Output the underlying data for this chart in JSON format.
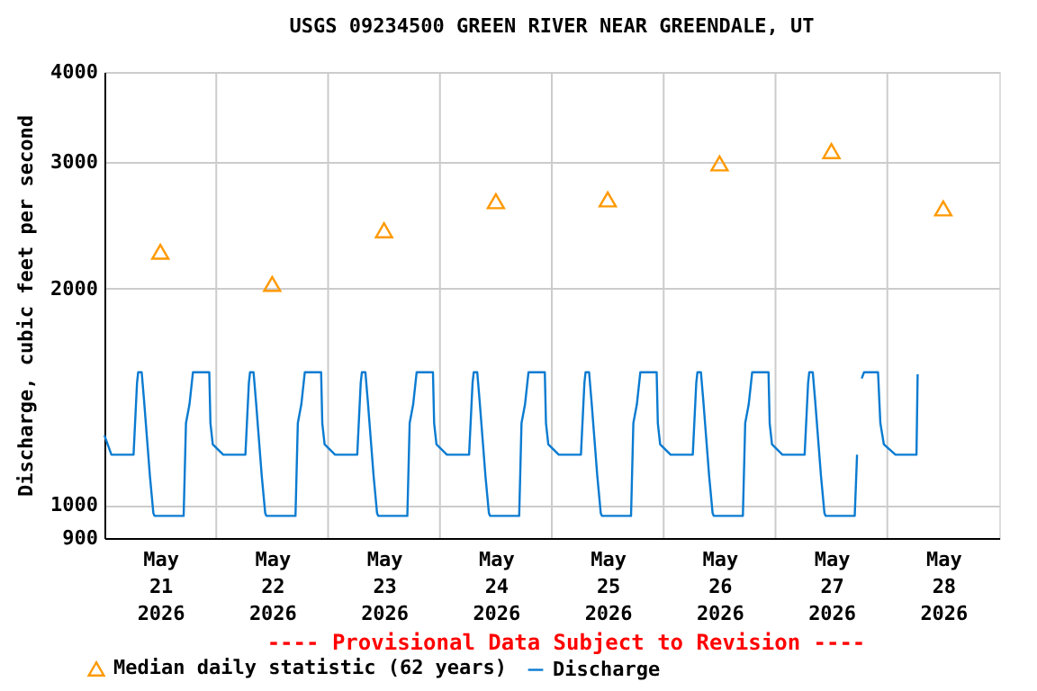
{
  "chart_data": {
    "type": "line",
    "title": "USGS 09234500 GREEN RIVER NEAR GREENDALE, UT",
    "ylabel": "Discharge, cubic feet per second",
    "annotations": [
      "---- Provisional Data Subject to Revision ----"
    ],
    "xlim": [
      "2026-05-21T00:00",
      "2026-05-29T00:00"
    ],
    "xticks": [
      {
        "value": "2026-05-21T12:00",
        "label": "May 21 2026"
      },
      {
        "value": "2026-05-22T00:00",
        "label": null
      },
      {
        "value": "2026-05-22T12:00",
        "label": "May 22 2026"
      },
      {
        "value": "2026-05-23T00:00",
        "label": null
      },
      {
        "value": "2026-05-23T12:00",
        "label": "May 23 2026"
      },
      {
        "value": "2026-05-24T00:00",
        "label": null
      },
      {
        "value": "2026-05-24T12:00",
        "label": "May 24 2026"
      },
      {
        "value": "2026-05-25T00:00",
        "label": null
      },
      {
        "value": "2026-05-25T12:00",
        "label": "May 25 2026"
      },
      {
        "value": "2026-05-26T00:00",
        "label": null
      },
      {
        "value": "2026-05-26T12:00",
        "label": "May 26 2026"
      },
      {
        "value": "2026-05-27T00:00",
        "label": null
      },
      {
        "value": "2026-05-27T12:00",
        "label": "May 27 2026"
      },
      {
        "value": "2026-05-28T00:00",
        "label": null
      },
      {
        "value": "2026-05-28T12:00",
        "label": "May 28 2026"
      }
    ],
    "ylim": [
      900,
      4000
    ],
    "yticks": [
      900,
      1000,
      2000,
      3000,
      4000
    ],
    "log": "y",
    "grid": true,
    "legend": "bottom",
    "series": [
      {
        "type": "scatter",
        "name": "Median daily statistic (62 years)",
        "color": "#ff9900",
        "marker": "triangle",
        "x": [
          "2026-05-21T12:00",
          "2026-05-22T12:00",
          "2026-05-23T12:00",
          "2026-05-24T12:00",
          "2026-05-25T12:00",
          "2026-05-26T12:00",
          "2026-05-27T12:00",
          "2026-05-28T12:00"
        ],
        "values": [
          2250,
          2030,
          2410,
          2645,
          2660,
          2985,
          3105,
          2585
        ]
      },
      {
        "type": "line",
        "name": "Discharge",
        "color": "#0a7bd1",
        "line_style": "solid",
        "x": [
          "2026-05-21T00:00",
          "2026-05-21T01:30",
          "2026-05-21T06:15",
          "2026-05-21T07:00",
          "2026-05-21T07:15",
          "2026-05-21T08:00",
          "2026-05-21T08:30",
          "2026-05-21T09:45",
          "2026-05-21T10:30",
          "2026-05-21T10:45",
          "2026-05-21T17:00",
          "2026-05-21T17:30",
          "2026-05-21T18:15",
          "2026-05-21T19:00",
          "2026-05-21T22:30",
          "2026-05-21T22:45",
          "2026-05-21T23:15",
          "2026-05-22T01:30",
          "2026-05-22T06:15",
          "2026-05-22T07:00",
          "2026-05-22T07:15",
          "2026-05-22T08:00",
          "2026-05-22T08:30",
          "2026-05-22T09:45",
          "2026-05-22T10:30",
          "2026-05-22T10:45",
          "2026-05-22T17:00",
          "2026-05-22T17:30",
          "2026-05-22T18:15",
          "2026-05-22T19:00",
          "2026-05-22T22:30",
          "2026-05-22T22:45",
          "2026-05-22T23:15",
          "2026-05-23T01:30",
          "2026-05-23T06:15",
          "2026-05-23T07:00",
          "2026-05-23T07:15",
          "2026-05-23T08:00",
          "2026-05-23T08:30",
          "2026-05-23T09:45",
          "2026-05-23T10:30",
          "2026-05-23T10:45",
          "2026-05-23T17:00",
          "2026-05-23T17:30",
          "2026-05-23T18:15",
          "2026-05-23T19:00",
          "2026-05-23T22:30",
          "2026-05-23T22:45",
          "2026-05-23T23:15",
          "2026-05-24T01:30",
          "2026-05-24T06:15",
          "2026-05-24T07:00",
          "2026-05-24T07:15",
          "2026-05-24T08:00",
          "2026-05-24T08:30",
          "2026-05-24T09:45",
          "2026-05-24T10:30",
          "2026-05-24T10:45",
          "2026-05-24T17:00",
          "2026-05-24T17:30",
          "2026-05-24T18:15",
          "2026-05-24T19:00",
          "2026-05-24T22:30",
          "2026-05-24T22:45",
          "2026-05-24T23:15",
          "2026-05-25T01:30",
          "2026-05-25T06:15",
          "2026-05-25T07:00",
          "2026-05-25T07:15",
          "2026-05-25T08:00",
          "2026-05-25T08:30",
          "2026-05-25T09:45",
          "2026-05-25T10:30",
          "2026-05-25T10:45",
          "2026-05-25T17:00",
          "2026-05-25T17:30",
          "2026-05-25T18:15",
          "2026-05-25T19:00",
          "2026-05-25T22:30",
          "2026-05-25T22:45",
          "2026-05-25T23:15",
          "2026-05-26T01:30",
          "2026-05-26T06:15",
          "2026-05-26T07:00",
          "2026-05-26T07:15",
          "2026-05-26T08:00",
          "2026-05-26T08:30",
          "2026-05-26T09:45",
          "2026-05-26T10:30",
          "2026-05-26T10:45",
          "2026-05-26T17:00",
          "2026-05-26T17:30",
          "2026-05-26T18:15",
          "2026-05-26T19:00",
          "2026-05-26T22:30",
          "2026-05-26T22:45",
          "2026-05-26T23:15",
          "2026-05-27T01:30",
          "2026-05-27T06:15",
          "2026-05-27T07:00",
          "2026-05-27T07:15",
          "2026-05-27T08:00",
          "2026-05-27T08:30",
          "2026-05-27T09:45",
          "2026-05-27T10:30",
          "2026-05-27T10:45",
          "2026-05-27T17:00",
          "2026-05-27T17:30",
          "2026-05-27T18:00",
          "2026-05-27T18:30",
          "2026-05-27T19:00",
          "2026-05-27T22:00",
          "2026-05-27T22:30",
          "2026-05-27T23:15",
          "2026-05-28T01:45",
          "2026-05-28T06:15",
          "2026-05-28T06:30"
        ],
        "values": [
          1250,
          1175,
          1175,
          1480,
          1530,
          1530,
          1400,
          1100,
          975,
          966,
          966,
          1300,
          1380,
          1530,
          1530,
          1300,
          1215,
          1175,
          1175,
          1480,
          1530,
          1530,
          1400,
          1100,
          975,
          966,
          966,
          1300,
          1380,
          1530,
          1530,
          1300,
          1215,
          1175,
          1175,
          1480,
          1530,
          1530,
          1400,
          1100,
          975,
          966,
          966,
          1300,
          1380,
          1530,
          1530,
          1300,
          1215,
          1175,
          1175,
          1480,
          1530,
          1530,
          1400,
          1100,
          975,
          966,
          966,
          1300,
          1380,
          1530,
          1530,
          1300,
          1215,
          1175,
          1175,
          1480,
          1530,
          1530,
          1400,
          1100,
          975,
          966,
          966,
          1300,
          1380,
          1530,
          1530,
          1300,
          1215,
          1175,
          1175,
          1480,
          1530,
          1530,
          1400,
          1100,
          975,
          966,
          966,
          1300,
          1380,
          1530,
          1530,
          1300,
          1215,
          1175,
          1175,
          1480,
          1530,
          1530,
          1400,
          1100,
          975,
          966,
          966,
          1175,
          null,
          1500,
          1530,
          1530,
          1300,
          1215,
          1175,
          1175,
          1520
        ]
      }
    ]
  }
}
